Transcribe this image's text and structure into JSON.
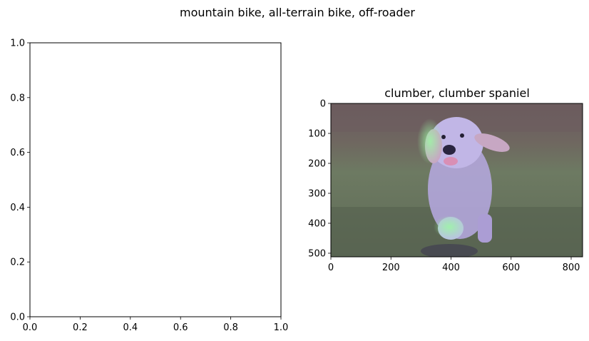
{
  "figure": {
    "suptitle": "mountain bike, all-terrain bike, off-roader"
  },
  "chart_data": [
    {
      "type": "empty_axes",
      "title": "",
      "xlim": [
        0,
        1
      ],
      "ylim": [
        0,
        1
      ],
      "xticks": [
        0,
        0.2,
        0.4,
        0.6,
        0.8,
        1
      ],
      "xtick_labels": [
        "0.0",
        "0.2",
        "0.4",
        "0.6",
        "0.8",
        "1.0"
      ],
      "yticks": [
        0,
        0.2,
        0.4,
        0.6,
        0.8,
        1
      ],
      "ytick_labels": [
        "0.0",
        "0.2",
        "0.4",
        "0.6",
        "0.8",
        "1.0"
      ],
      "grid": false
    },
    {
      "type": "image",
      "title": "clumber, clumber spaniel",
      "image_description": "puppy running on grass with heatmap overlay",
      "xlim": [
        0,
        838
      ],
      "ylim": [
        512,
        0
      ],
      "xticks": [
        0,
        200,
        400,
        600,
        800
      ],
      "xtick_labels": [
        "0",
        "200",
        "400",
        "600",
        "800"
      ],
      "yticks": [
        0,
        100,
        200,
        300,
        400,
        500
      ],
      "ytick_labels": [
        "0",
        "100",
        "200",
        "300",
        "400",
        "500"
      ],
      "grid": false
    }
  ]
}
